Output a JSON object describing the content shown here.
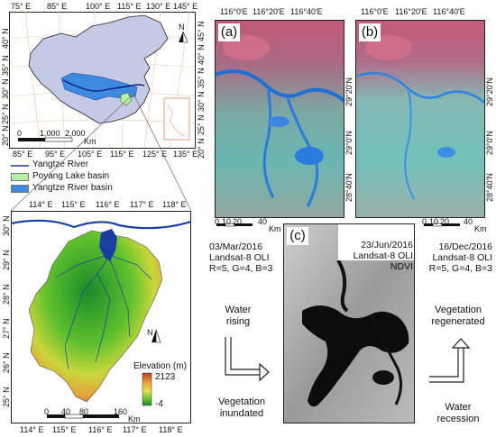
{
  "china_map": {
    "lon_top": [
      "75° E",
      "85° E",
      "100° E",
      "115° E",
      "130° E",
      "145° E"
    ],
    "lon_bottom": [
      "85° E",
      "95° E",
      "105° E",
      "115° E",
      "125° E",
      "135° E"
    ],
    "lat_left": [
      "40° N",
      "35° N",
      "30° N",
      "25° N",
      "20° N"
    ],
    "lat_right": [
      "45° N",
      "40° N",
      "35° N",
      "30° N",
      "25° N",
      "20° N"
    ],
    "scale": [
      "0",
      "1,000",
      "2,000"
    ],
    "scale_unit": "Km",
    "north": "N"
  },
  "legend": {
    "items": [
      {
        "label": "Yangtze River",
        "color": "#1b3fa0"
      },
      {
        "label": "Poyang Lake basin",
        "color": "#b7f0a4"
      },
      {
        "label": "Yangtze River basin",
        "color": "#3d8be0"
      }
    ]
  },
  "dem_map": {
    "lon_top": [
      "114° E",
      "115° E",
      "116° E",
      "117° E",
      "118° E"
    ],
    "lon_bottom": [
      "114° E",
      "115° E",
      "116° E",
      "117° E",
      "118° E"
    ],
    "lat": [
      "30° N",
      "29° N",
      "28° N",
      "27° N",
      "26° N",
      "25° N"
    ],
    "elevation_title": "Elevation (m)",
    "elev_max": "2123",
    "elev_min": "-4",
    "scale": [
      "0",
      "40",
      "80",
      "160"
    ],
    "scale_unit": "Km",
    "north": "N"
  },
  "satellite": {
    "lon": [
      "116°0'E",
      "116°20'E",
      "116°40'E"
    ],
    "lat": [
      "29°20'N",
      "29°0'N",
      "28°40'N"
    ],
    "scale": [
      "0",
      "10",
      "20",
      "40"
    ],
    "scale_unit": "Km",
    "panel_a": "(a)",
    "panel_b": "(b)",
    "panel_c": "(c)"
  },
  "info": {
    "a": [
      "03/Mar/2016",
      "Landsat-8 OLI",
      "R=5, G=4, B=3"
    ],
    "c": [
      "23/Jun/2016",
      "Landsat-8 OLI",
      "NDVI"
    ],
    "b": [
      "16/Dec/2016",
      "Landsat-8 OLI",
      "R=5, G=4, B=3"
    ]
  },
  "annotations": {
    "water_rising": [
      "Water",
      "rising"
    ],
    "veg_inundated": [
      "Vegetation",
      "inundated"
    ],
    "veg_regenerated": [
      "Vegetation",
      "regenerated"
    ],
    "water_recession": [
      "Water",
      "recession"
    ]
  }
}
